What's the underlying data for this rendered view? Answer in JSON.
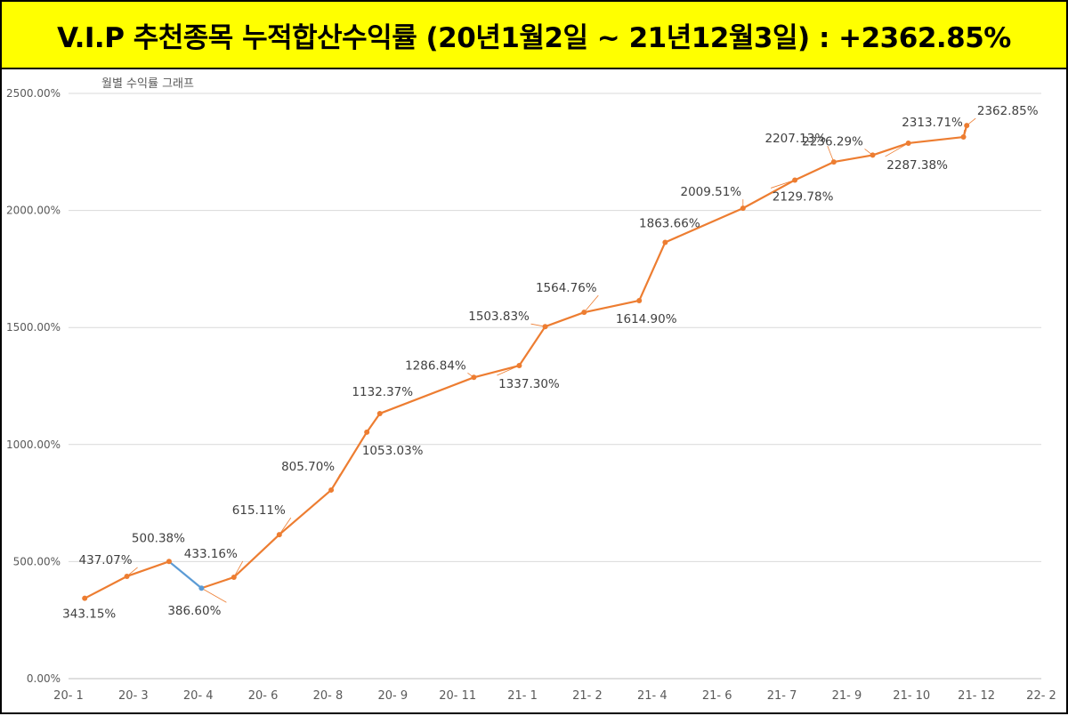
{
  "banner": {
    "title": "V.I.P 추천종목 누적합산수익률 (20년1월2일  ~  21년12월3일) : +2362.85%"
  },
  "colors": {
    "banner_bg": "#ffff00",
    "line": "#ed7d31",
    "segment_down": "#5b9bd5",
    "grid": "#d9d9d9",
    "axis_text": "#595959",
    "label_text": "#404040"
  },
  "chart_data": {
    "type": "line",
    "title": "월별 수익률 그래프",
    "xlabel": "",
    "ylabel": "",
    "ylim": [
      0,
      2500
    ],
    "y_ticks": [
      "0.00%",
      "500.00%",
      "1000.00%",
      "1500.00%",
      "2000.00%",
      "2500.00%"
    ],
    "x_ticks": [
      "20- 1",
      "20- 3",
      "20- 4",
      "20- 6",
      "20- 8",
      "20- 9",
      "20- 11",
      "21- 1",
      "21- 2",
      "21- 4",
      "21- 6",
      "21- 7",
      "21- 9",
      "21- 10",
      "21- 12",
      "22- 2"
    ],
    "grid": true,
    "legend": "none",
    "series": [
      {
        "values": [
          343.15,
          437.07,
          500.38,
          386.6,
          433.16,
          615.11,
          805.7,
          1053.03,
          1132.37,
          1286.84,
          1337.3,
          1503.83,
          1564.76,
          1614.9,
          1863.66,
          2009.51,
          2129.78,
          2207.13,
          2236.29,
          2287.38,
          2313.71,
          2362.85
        ],
        "labels": [
          "343.15%",
          "437.07%",
          "500.38%",
          "386.60%",
          "433.16%",
          "615.11%",
          "805.70%",
          "1053.03%",
          "1132.37%",
          "1286.84%",
          "1337.30%",
          "1503.83%",
          "1564.76%",
          "1614.90%",
          "1863.66%",
          "2009.51%",
          "2129.78%",
          "2207.13%",
          "2236.29%",
          "2287.38%",
          "2313.71%",
          "2362.85%"
        ],
        "x_positions": [
          0.25,
          0.9,
          1.55,
          2.05,
          2.55,
          3.25,
          4.05,
          4.6,
          4.8,
          6.25,
          6.95,
          7.35,
          7.95,
          8.8,
          9.2,
          10.4,
          11.2,
          11.8,
          12.4,
          12.95,
          13.8,
          13.85
        ]
      }
    ]
  }
}
